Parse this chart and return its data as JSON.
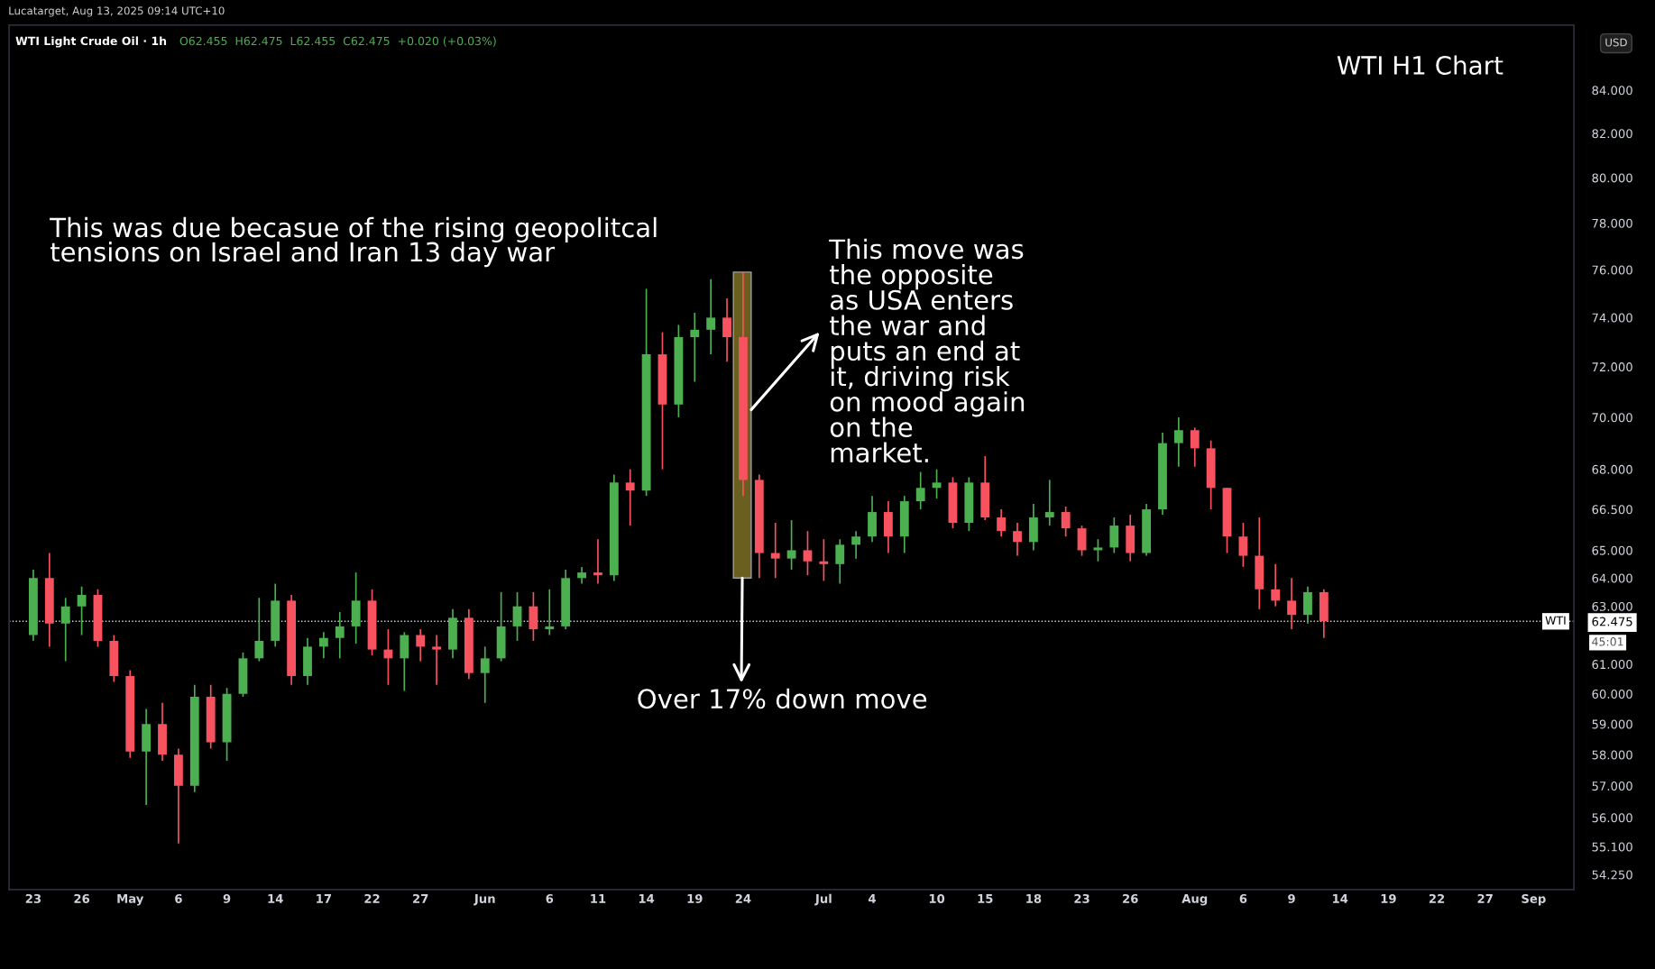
{
  "chart_data": {
    "type": "candlestick",
    "title": "WTI Light Crude Oil · 1h",
    "subtitle": "O62.455  H62.475  L62.455  C62.475  +0.020 (+0.03%)",
    "annotations": [
      "Lucatarget, Aug 13, 2025 09:14 UTC+10",
      "WTI H1 Chart",
      "USD",
      "This was due becasue of the rising geopolitcal\ntensions on Israel and Iran 13 day war",
      "This move was\nthe opposite\nas USA enters\nthe war and\nputs an end at\nit, driving risk\non mood again\non the\nmarket.",
      "Over 17% down move",
      "45:01"
    ],
    "categories": [
      null,
      "23",
      null,
      null,
      "26",
      null,
      null,
      "May",
      null,
      null,
      "6",
      null,
      null,
      "9",
      null,
      null,
      "14",
      null,
      null,
      "17",
      null,
      null,
      "22",
      null,
      null,
      "27",
      null,
      null,
      null,
      "Jun",
      null,
      null,
      null,
      "6",
      null,
      null,
      "11",
      null,
      null,
      "14",
      null,
      null,
      "19",
      null,
      null,
      "24",
      null,
      null,
      null,
      null,
      "Jul",
      null,
      null,
      "4",
      null,
      null,
      null,
      "10",
      null,
      null,
      "15",
      null,
      null,
      "18",
      null,
      null,
      "23",
      null,
      null,
      "26",
      null,
      null,
      null,
      "Aug",
      null,
      null,
      "6",
      null,
      null,
      "9",
      null,
      null,
      "14",
      null,
      null,
      "19",
      null,
      null,
      "22",
      null,
      null,
      "27",
      null,
      null,
      "Sep",
      null,
      null
    ],
    "ohlc": [
      null,
      [
        62.0,
        64.3,
        61.8,
        64.0
      ],
      [
        64.0,
        64.9,
        61.6,
        62.4
      ],
      [
        62.4,
        63.3,
        61.1,
        63.0
      ],
      [
        63.0,
        63.7,
        62.0,
        63.4
      ],
      [
        63.4,
        63.6,
        61.6,
        61.8
      ],
      [
        61.8,
        62.0,
        60.4,
        60.6
      ],
      [
        60.6,
        60.8,
        57.9,
        58.1
      ],
      [
        58.1,
        59.5,
        56.4,
        59.0
      ],
      [
        59.0,
        59.7,
        57.8,
        58.0
      ],
      [
        58.0,
        58.2,
        55.2,
        57.0
      ],
      [
        57.0,
        60.3,
        56.8,
        59.9
      ],
      [
        59.9,
        60.3,
        58.2,
        58.4
      ],
      [
        58.4,
        60.2,
        57.8,
        60.0
      ],
      [
        60.0,
        61.4,
        59.9,
        61.2
      ],
      [
        61.2,
        63.3,
        61.1,
        61.8
      ],
      [
        61.8,
        63.8,
        61.6,
        63.2
      ],
      [
        63.2,
        63.4,
        60.3,
        60.6
      ],
      [
        60.6,
        61.9,
        60.3,
        61.6
      ],
      [
        61.6,
        62.1,
        61.2,
        61.9
      ],
      [
        61.9,
        62.8,
        61.2,
        62.3
      ],
      [
        62.3,
        64.2,
        61.7,
        63.2
      ],
      [
        63.2,
        63.6,
        61.3,
        61.5
      ],
      [
        61.5,
        62.2,
        60.3,
        61.2
      ],
      [
        61.2,
        62.1,
        60.1,
        62.0
      ],
      [
        62.0,
        62.2,
        61.1,
        61.6
      ],
      [
        61.6,
        62.0,
        60.3,
        61.5
      ],
      [
        61.5,
        62.9,
        61.2,
        62.6
      ],
      [
        62.6,
        62.9,
        60.5,
        60.7
      ],
      [
        60.7,
        61.6,
        59.7,
        61.2
      ],
      [
        61.2,
        63.5,
        61.1,
        62.3
      ],
      [
        62.3,
        63.5,
        61.8,
        63.0
      ],
      [
        63.0,
        63.5,
        61.8,
        62.2
      ],
      [
        62.2,
        63.6,
        62.0,
        62.3
      ],
      [
        62.3,
        64.3,
        62.2,
        64.0
      ],
      [
        64.0,
        64.4,
        63.8,
        64.2
      ],
      [
        64.2,
        65.4,
        63.8,
        64.1
      ],
      [
        64.1,
        67.8,
        63.9,
        67.5
      ],
      [
        67.5,
        68.0,
        65.9,
        67.2
      ],
      [
        67.2,
        75.2,
        67.0,
        72.5
      ],
      [
        72.5,
        73.4,
        68.0,
        70.5
      ],
      [
        70.5,
        73.7,
        70.0,
        73.2
      ],
      [
        73.2,
        74.2,
        71.4,
        73.5
      ],
      [
        73.5,
        75.6,
        72.5,
        74.0
      ],
      [
        74.0,
        74.8,
        72.2,
        73.2
      ],
      [
        73.2,
        75.9,
        67.0,
        67.6
      ],
      [
        67.6,
        67.8,
        64.0,
        64.9
      ],
      [
        64.9,
        66.0,
        64.0,
        64.7
      ],
      [
        64.7,
        66.1,
        64.3,
        65.0
      ],
      [
        65.0,
        65.7,
        64.1,
        64.6
      ],
      [
        64.6,
        65.4,
        63.9,
        64.5
      ],
      [
        64.5,
        65.4,
        63.8,
        65.2
      ],
      [
        65.2,
        65.7,
        64.7,
        65.5
      ],
      [
        65.5,
        67.0,
        65.3,
        66.4
      ],
      [
        66.4,
        66.8,
        64.9,
        65.5
      ],
      [
        65.5,
        67.0,
        64.9,
        66.8
      ],
      [
        66.8,
        67.9,
        66.5,
        67.3
      ],
      [
        67.3,
        68.0,
        66.9,
        67.5
      ],
      [
        67.5,
        67.7,
        65.8,
        66.0
      ],
      [
        66.0,
        67.7,
        65.7,
        67.5
      ],
      [
        67.5,
        68.5,
        66.1,
        66.2
      ],
      [
        66.2,
        66.5,
        65.5,
        65.7
      ],
      [
        65.7,
        66.0,
        64.8,
        65.3
      ],
      [
        65.3,
        66.7,
        65.0,
        66.2
      ],
      [
        66.2,
        67.6,
        65.9,
        66.4
      ],
      [
        66.4,
        66.6,
        65.5,
        65.8
      ],
      [
        65.8,
        65.9,
        64.8,
        65.0
      ],
      [
        65.0,
        65.4,
        64.6,
        65.1
      ],
      [
        65.1,
        66.2,
        64.9,
        65.9
      ],
      [
        65.9,
        66.3,
        64.6,
        64.9
      ],
      [
        64.9,
        66.7,
        64.8,
        66.5
      ],
      [
        66.5,
        69.4,
        66.3,
        69.0
      ],
      [
        69.0,
        70.0,
        68.1,
        69.5
      ],
      [
        69.5,
        69.6,
        68.1,
        68.8
      ],
      [
        68.8,
        69.1,
        66.5,
        67.3
      ],
      [
        67.3,
        67.3,
        64.9,
        65.5
      ],
      [
        65.5,
        66.0,
        64.4,
        64.8
      ],
      [
        64.8,
        66.2,
        62.9,
        63.6
      ],
      [
        63.6,
        64.5,
        63.0,
        63.2
      ],
      [
        63.2,
        64.0,
        62.2,
        62.7
      ],
      [
        62.7,
        63.7,
        62.4,
        63.5
      ],
      [
        63.5,
        63.6,
        61.9,
        62.475
      ],
      null,
      null,
      null,
      null,
      null,
      null,
      null,
      null,
      null,
      null,
      null,
      null,
      null,
      null,
      null
    ],
    "colors": [
      null,
      "#4caf50",
      "#f7525f",
      "#4caf50",
      "#4caf50",
      "#f7525f",
      "#f7525f",
      "#f7525f",
      "#4caf50",
      "#f7525f",
      "#f7525f",
      "#4caf50",
      "#f7525f",
      "#4caf50",
      "#4caf50",
      "#4caf50",
      "#4caf50",
      "#f7525f",
      "#4caf50",
      "#4caf50",
      "#4caf50",
      "#4caf50",
      "#f7525f",
      "#f7525f",
      "#4caf50",
      "#f7525f",
      "#f7525f",
      "#4caf50",
      "#f7525f",
      "#4caf50",
      "#4caf50",
      "#4caf50",
      "#f7525f",
      "#4caf50",
      "#4caf50",
      "#4caf50",
      "#f7525f",
      "#4caf50",
      "#f7525f",
      "#4caf50",
      "#f7525f",
      "#4caf50",
      "#4caf50",
      "#4caf50",
      "#f7525f",
      "#f7525f",
      "#f7525f",
      "#f7525f",
      "#4caf50",
      "#f7525f",
      "#f7525f",
      "#4caf50",
      "#4caf50",
      "#4caf50",
      "#f7525f",
      "#4caf50",
      "#4caf50",
      "#4caf50",
      "#f7525f",
      "#4caf50",
      "#f7525f",
      "#f7525f",
      "#f7525f",
      "#4caf50",
      "#4caf50",
      "#f7525f",
      "#f7525f",
      "#4caf50",
      "#4caf50",
      "#f7525f",
      "#4caf50",
      "#4caf50",
      "#4caf50",
      "#f7525f",
      "#f7525f",
      "#f7525f",
      "#f7525f",
      "#f7525f",
      "#f7525f",
      "#f7525f",
      "#4caf50",
      "#f7525f",
      null,
      null,
      null,
      null,
      null,
      null,
      null,
      null,
      null,
      null,
      null,
      null,
      null,
      null,
      null
    ],
    "log": true,
    "ylim": [
      53.8,
      87.1
    ],
    "yticks": [
      {
        "value": 84,
        "label": "84.000"
      },
      {
        "value": 82,
        "label": "82.000"
      },
      {
        "value": 80,
        "label": "80.000"
      },
      {
        "value": 78,
        "label": "78.000"
      },
      {
        "value": 76,
        "label": "76.000"
      },
      {
        "value": 74,
        "label": "74.000"
      },
      {
        "value": 72,
        "label": "72.000"
      },
      {
        "value": 70,
        "label": "70.000"
      },
      {
        "value": 68,
        "label": "68.000"
      },
      {
        "value": 66.5,
        "label": "66.500"
      },
      {
        "value": 65,
        "label": "65.000"
      },
      {
        "value": 64,
        "label": "64.000"
      },
      {
        "value": 63,
        "label": "63.000"
      },
      62.475,
      {
        "value": 61,
        "label": "61.000"
      },
      {
        "value": 60,
        "label": "60.000"
      },
      {
        "value": 59,
        "label": "59.000"
      },
      {
        "value": 58,
        "label": "58.000"
      },
      {
        "value": 57,
        "label": "57.000"
      },
      {
        "value": 56,
        "label": "56.000"
      },
      {
        "value": 55.1,
        "label": "55.100"
      },
      {
        "value": 54.25,
        "label": "54.250"
      }
    ],
    "grid": false,
    "ref_lines": [
      {
        "axis": "y",
        "value": 62.475,
        "label": "WTI",
        "color": "#d1d4dc",
        "line_style": "dotted"
      }
    ]
  }
}
